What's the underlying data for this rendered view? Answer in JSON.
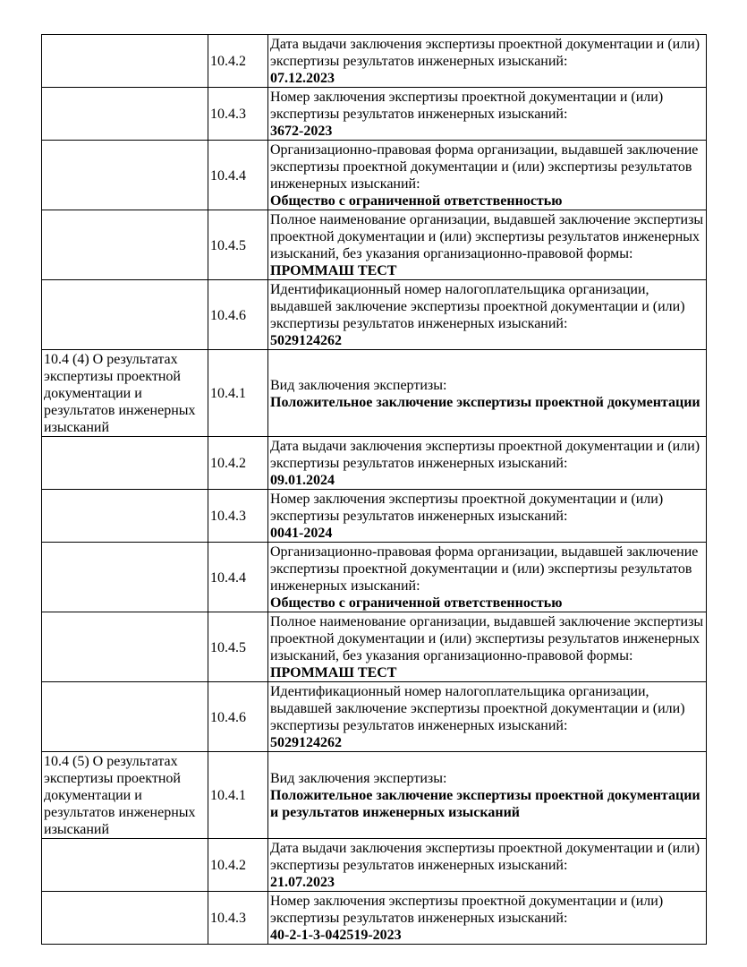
{
  "rows": [
    {
      "section": "",
      "code": "10.4.2",
      "label": "Дата выдачи заключения экспертизы проектной документации и (или) экспертизы результатов инженерных изысканий:",
      "value": "07.12.2023"
    },
    {
      "section": "",
      "code": "10.4.3",
      "label": "Номер заключения экспертизы проектной документации и (или) экспертизы результатов инженерных изысканий:",
      "value": "3672-2023"
    },
    {
      "section": "",
      "code": "10.4.4",
      "label": "Организационно-правовая форма организации, выдавшей заключение экспертизы проектной документации и (или) экспертизы результатов инженерных изысканий:",
      "value": "Общество с ограниченной ответственностью"
    },
    {
      "section": "",
      "code": "10.4.5",
      "label": "Полное наименование организации, выдавшей заключение экспертизы проектной документации и (или) экспертизы результатов инженерных изысканий, без указания организационно-правовой формы:",
      "value": "ПРОММАШ ТЕСТ"
    },
    {
      "section": "",
      "code": "10.4.6",
      "label": "Идентификационный номер налогоплательщика организации, выдавшей заключение экспертизы проектной документации и (или) экспертизы результатов инженерных изысканий:",
      "value": "5029124262"
    },
    {
      "section": "10.4 (4) О результатах экспертизы проектной документации и результатов инженерных изысканий",
      "code": "10.4.1",
      "label": "Вид заключения экспертизы:",
      "value": "Положительное заключение экспертизы проектной документации"
    },
    {
      "section": "",
      "code": "10.4.2",
      "label": "Дата выдачи заключения экспертизы проектной документации и (или) экспертизы результатов инженерных изысканий:",
      "value": "09.01.2024"
    },
    {
      "section": "",
      "code": "10.4.3",
      "label": "Номер заключения экспертизы проектной документации и (или) экспертизы результатов инженерных изысканий:",
      "value": "0041-2024"
    },
    {
      "section": "",
      "code": "10.4.4",
      "label": "Организационно-правовая форма организации, выдавшей заключение экспертизы проектной документации и (или) экспертизы результатов инженерных изысканий:",
      "value": "Общество с ограниченной ответственностью"
    },
    {
      "section": "",
      "code": "10.4.5",
      "label": "Полное наименование организации, выдавшей заключение экспертизы проектной документации и (или) экспертизы результатов инженерных изысканий, без указания организационно-правовой формы:",
      "value": "ПРОММАШ ТЕСТ"
    },
    {
      "section": "",
      "code": "10.4.6",
      "label": "Идентификационный номер налогоплательщика организации, выдавшей заключение экспертизы проектной документации и (или) экспертизы результатов инженерных изысканий:",
      "value": "5029124262"
    },
    {
      "section": "10.4 (5) О результатах экспертизы проектной документации и результатов инженерных изысканий",
      "code": "10.4.1",
      "label": "Вид заключения экспертизы:",
      "value": "Положительное заключение экспертизы проектной документации и результатов инженерных изысканий"
    },
    {
      "section": "",
      "code": "10.4.2",
      "label": "Дата выдачи заключения экспертизы проектной документации и (или) экспертизы результатов инженерных изысканий:",
      "value": "21.07.2023"
    },
    {
      "section": "",
      "code": "10.4.3",
      "label": "Номер заключения экспертизы проектной документации и (или) экспертизы результатов инженерных изысканий:",
      "value": "40-2-1-3-042519-2023"
    }
  ]
}
